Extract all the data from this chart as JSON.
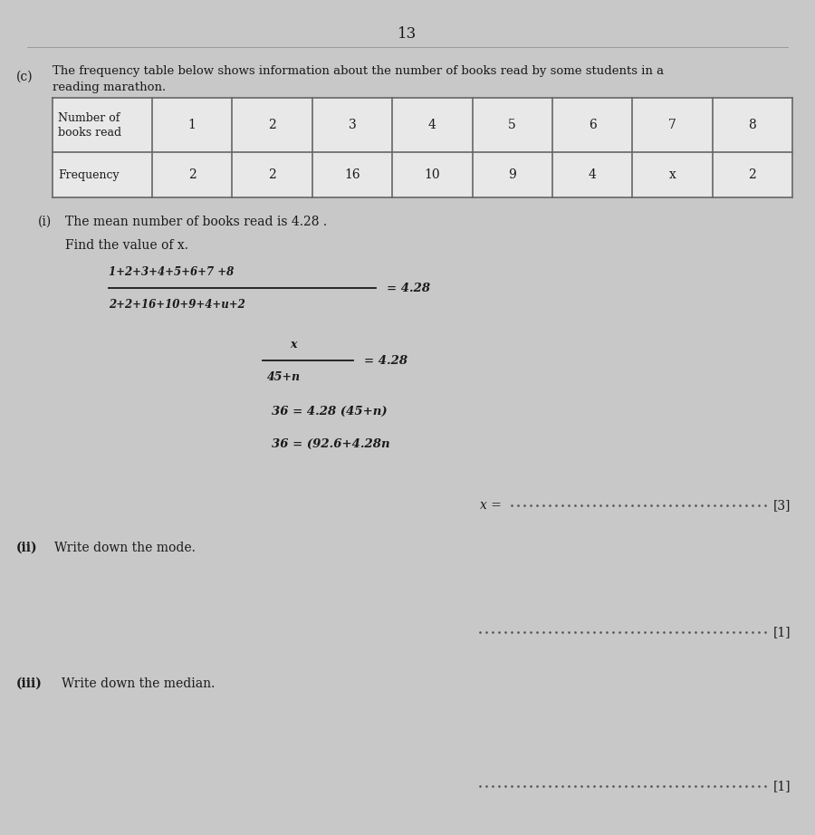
{
  "page_number": "13",
  "background_color": "#c8c8c8",
  "part_label": "(c)",
  "intro_line1": "The frequency table below shows information about the number of books read by some students in a",
  "intro_line2": "reading marathon.",
  "table_row1_label": "Number of\nbooks read",
  "table_row1_vals": [
    "1",
    "2",
    "3",
    "4",
    "5",
    "6",
    "7",
    "8"
  ],
  "table_row2_label": "Frequency",
  "table_row2_vals": [
    "2",
    "2",
    "16",
    "10",
    "9",
    "4",
    "x",
    "2"
  ],
  "part_i_label": "(i)",
  "part_i_text": "The mean number of books read is 4.28 .",
  "find_x_text": "Find the value of x.",
  "work1_num": "1+2+3+4+5+6+7 +8",
  "work1_den": "2+2+16+10+9+4+u+2",
  "work1_eq": "= 4.28",
  "work2_num": "x",
  "work2_den": "45+n",
  "work2_eq": "= 4.28",
  "work3": "36 = 4.28 (45+n)",
  "work4": "36 = (92.6+4.28n",
  "answer_i_prefix": "x =",
  "answer_i_marks": "[3]",
  "part_ii_label": "(ii)",
  "part_ii_text": "Write down the mode.",
  "answer_ii_marks": "[1]",
  "part_iii_label": "(iii)",
  "part_iii_text": "Write down the median.",
  "answer_iii_marks": "[1]",
  "line_color": "#888888",
  "text_color": "#1a1a1a",
  "hand_color": "#1a1a1a",
  "dot_color": "#555555",
  "table_line_color": "#666666",
  "table_bg": "#e8e8e8"
}
